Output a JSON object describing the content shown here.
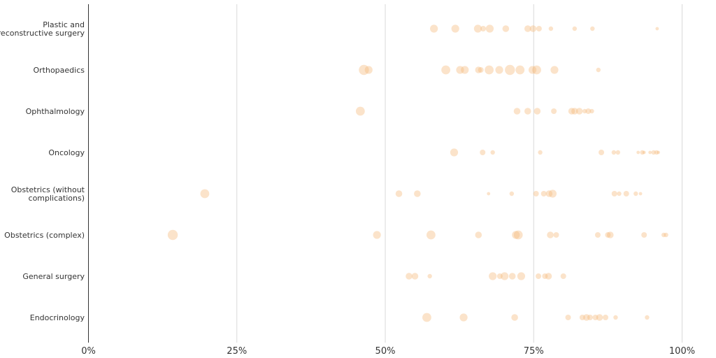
{
  "chart_data": {
    "type": "scatter",
    "title": "",
    "xlabel": "",
    "ylabel": "",
    "xlim": [
      0,
      100
    ],
    "x_ticks": [
      {
        "value": 0,
        "label": "0%"
      },
      {
        "value": 25,
        "label": "25%"
      },
      {
        "value": 50,
        "label": "50%"
      },
      {
        "value": 75,
        "label": "75%"
      },
      {
        "value": 100,
        "label": "100%"
      }
    ],
    "grid": "vertical",
    "color": "#f5b87a",
    "categories": [
      {
        "label_lines": [
          "Plastic and",
          "reconstructive surgery"
        ]
      },
      {
        "label_lines": [
          "Orthopaedics"
        ]
      },
      {
        "label_lines": [
          "Ophthalmology"
        ]
      },
      {
        "label_lines": [
          "Oncology"
        ]
      },
      {
        "label_lines": [
          "Obstetrics (without",
          "complications)"
        ]
      },
      {
        "label_lines": [
          "Obstetrics (complex)"
        ]
      },
      {
        "label_lines": [
          "General surgery"
        ]
      },
      {
        "label_lines": [
          "Endocrinology"
        ]
      }
    ],
    "points": [
      [
        [
          58.2,
          2.8
        ],
        [
          61.8,
          2.8
        ],
        [
          65.6,
          2.8
        ],
        [
          66.5,
          2.0
        ],
        [
          67.6,
          2.8
        ],
        [
          70.3,
          2.4
        ],
        [
          74.0,
          2.4
        ],
        [
          74.9,
          2.4
        ],
        [
          75.9,
          2.0
        ],
        [
          77.9,
          1.6
        ],
        [
          81.9,
          1.6
        ],
        [
          84.9,
          1.6
        ],
        [
          95.8,
          1.2
        ]
      ],
      [
        [
          46.4,
          3.6
        ],
        [
          47.2,
          2.8
        ],
        [
          60.2,
          3.2
        ],
        [
          62.6,
          2.8
        ],
        [
          63.4,
          2.8
        ],
        [
          65.7,
          2.4
        ],
        [
          66.1,
          2.0
        ],
        [
          67.5,
          3.2
        ],
        [
          69.2,
          2.8
        ],
        [
          71.0,
          3.6
        ],
        [
          72.7,
          3.2
        ],
        [
          74.8,
          2.8
        ],
        [
          75.5,
          3.2
        ],
        [
          78.5,
          2.8
        ],
        [
          85.9,
          1.6
        ]
      ],
      [
        [
          45.8,
          3.2
        ],
        [
          72.2,
          2.4
        ],
        [
          74.0,
          2.4
        ],
        [
          75.6,
          2.4
        ],
        [
          78.4,
          2.0
        ],
        [
          81.4,
          2.4
        ],
        [
          81.9,
          2.4
        ],
        [
          82.7,
          2.4
        ],
        [
          83.6,
          1.6
        ],
        [
          84.2,
          2.0
        ],
        [
          84.8,
          1.6
        ]
      ],
      [
        [
          61.6,
          2.8
        ],
        [
          66.4,
          2.0
        ],
        [
          68.1,
          1.6
        ],
        [
          76.1,
          1.6
        ],
        [
          86.4,
          2.0
        ],
        [
          88.5,
          1.6
        ],
        [
          89.2,
          1.6
        ],
        [
          92.6,
          1.2
        ],
        [
          93.3,
          1.6
        ],
        [
          93.6,
          1.2
        ],
        [
          94.6,
          1.2
        ],
        [
          95.2,
          1.6
        ],
        [
          95.7,
          1.6
        ],
        [
          96.0,
          1.2
        ]
      ],
      [
        [
          19.6,
          3.2
        ],
        [
          52.3,
          2.4
        ],
        [
          55.4,
          2.4
        ],
        [
          67.4,
          1.2
        ],
        [
          71.3,
          1.6
        ],
        [
          75.4,
          2.0
        ],
        [
          76.7,
          2.0
        ],
        [
          77.6,
          2.4
        ],
        [
          78.2,
          2.8
        ],
        [
          88.6,
          2.0
        ],
        [
          89.4,
          1.6
        ],
        [
          90.6,
          2.0
        ],
        [
          92.2,
          1.6
        ],
        [
          93.0,
          1.2
        ]
      ],
      [
        [
          14.2,
          3.6
        ],
        [
          48.6,
          2.8
        ],
        [
          57.7,
          3.2
        ],
        [
          65.7,
          2.4
        ],
        [
          72.0,
          2.8
        ],
        [
          72.4,
          3.2
        ],
        [
          77.8,
          2.4
        ],
        [
          78.8,
          2.0
        ],
        [
          85.8,
          2.0
        ],
        [
          87.5,
          2.0
        ],
        [
          87.9,
          2.4
        ],
        [
          93.6,
          2.0
        ],
        [
          96.9,
          1.6
        ],
        [
          97.3,
          1.6
        ]
      ],
      [
        [
          54.0,
          2.4
        ],
        [
          55.0,
          2.4
        ],
        [
          57.5,
          1.6
        ],
        [
          68.1,
          2.8
        ],
        [
          69.3,
          2.0
        ],
        [
          70.1,
          2.8
        ],
        [
          71.4,
          2.4
        ],
        [
          72.9,
          2.8
        ],
        [
          75.8,
          2.0
        ],
        [
          76.9,
          2.0
        ],
        [
          77.5,
          2.4
        ],
        [
          80.0,
          2.0
        ]
      ],
      [
        [
          57.0,
          3.2
        ],
        [
          63.2,
          2.8
        ],
        [
          71.8,
          2.4
        ],
        [
          80.8,
          2.0
        ],
        [
          83.2,
          2.0
        ],
        [
          83.9,
          2.4
        ],
        [
          84.5,
          2.0
        ],
        [
          85.4,
          2.0
        ],
        [
          86.1,
          2.4
        ],
        [
          87.1,
          2.0
        ],
        [
          88.8,
          1.6
        ],
        [
          94.1,
          1.6
        ]
      ]
    ]
  }
}
